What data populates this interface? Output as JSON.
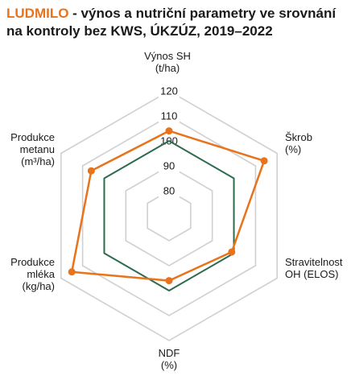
{
  "header": {
    "brand": "LUDMILO",
    "title_rest": " - výnos a nutriční parametry ve srovnání na kontroly bez KWS, ÚKZÚZ, 2019–2022"
  },
  "chart_data": {
    "type": "radar",
    "axes": [
      [
        "Výnos SH",
        "(t/ha)"
      ],
      [
        "Škrob",
        "(%)"
      ],
      [
        "Stravitelnost",
        "OH (ELOS)"
      ],
      [
        "NDF",
        "(%)"
      ],
      [
        "Produkce",
        "mléka",
        "(kg/ha)"
      ],
      [
        "Produkce",
        "metanu",
        "(m³/ha)"
      ]
    ],
    "rlim": [
      70,
      120
    ],
    "ticks": [
      80,
      90,
      100,
      110,
      120
    ],
    "tick_labels": [
      "80",
      "90",
      "100",
      "110",
      "120"
    ],
    "grid": true,
    "series": [
      {
        "values": [
          100,
          100,
          100,
          100,
          100,
          100
        ],
        "color": "#2e6b4e"
      },
      {
        "values": [
          104,
          114,
          99,
          96,
          115,
          106
        ],
        "color": "#e8731a"
      }
    ],
    "grid_color": "#d0d0d0"
  }
}
